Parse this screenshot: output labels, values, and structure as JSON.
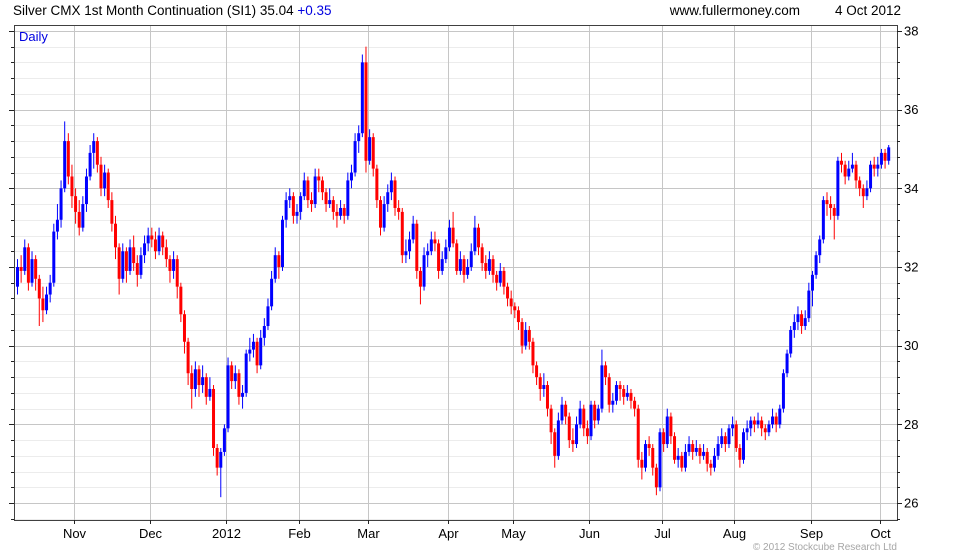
{
  "header": {
    "title": "Silver CMX 1st Month Continuation (SI1) 35.04",
    "change": "+0.35",
    "site": "www.fullermoney.com",
    "date": "4 Oct 2012"
  },
  "chart": {
    "timeframe": "Daily",
    "copyright": "© 2012 Stockcube Research Ltd"
  },
  "chart_data": {
    "type": "candlestick",
    "instrument": "Silver CMX 1st Month Continuation (SI1)",
    "timeframe": "Daily",
    "last_price": 35.04,
    "change": 0.35,
    "ylim": [
      25.57,
      38.15
    ],
    "y_major_ticks": [
      26,
      28,
      30,
      32,
      34,
      36,
      38
    ],
    "y_minor_step": 0.4,
    "grid": "major-and-minor-horizontal, vertical-at-month-starts",
    "legend_position": "none",
    "colors": {
      "up": "#0000ff",
      "down": "#ff0000",
      "grid_major": "#c6c6c6",
      "grid_minor": "#ececec",
      "border": "#404040",
      "tick": "#222222",
      "label": "#000000"
    },
    "months": [
      {
        "label": "Nov",
        "start": 16
      },
      {
        "label": "Dec",
        "start": 37
      },
      {
        "label": "2012",
        "start": 58
      },
      {
        "label": "Feb",
        "start": 78
      },
      {
        "label": "Mar",
        "start": 97
      },
      {
        "label": "Apr",
        "start": 119
      },
      {
        "label": "May",
        "start": 137
      },
      {
        "label": "Jun",
        "start": 158
      },
      {
        "label": "Jul",
        "start": 178
      },
      {
        "label": "Aug",
        "start": 198
      },
      {
        "label": "Sep",
        "start": 219
      },
      {
        "label": "Oct",
        "start": 238
      }
    ],
    "ohlc": [
      [
        31.5,
        32.2,
        31.3,
        32.0
      ],
      [
        32.0,
        32.3,
        31.6,
        31.9
      ],
      [
        31.9,
        32.7,
        31.8,
        32.5
      ],
      [
        32.5,
        32.6,
        31.4,
        31.6
      ],
      [
        31.6,
        32.4,
        31.5,
        32.2
      ],
      [
        32.2,
        32.3,
        31.4,
        31.7
      ],
      [
        31.7,
        31.8,
        30.5,
        31.2
      ],
      [
        31.2,
        31.5,
        30.6,
        30.9
      ],
      [
        30.9,
        31.5,
        30.8,
        31.3
      ],
      [
        31.3,
        31.8,
        31.1,
        31.6
      ],
      [
        31.6,
        33.1,
        31.5,
        32.9
      ],
      [
        32.9,
        33.6,
        32.7,
        33.2
      ],
      [
        33.2,
        34.2,
        33.0,
        34.0
      ],
      [
        34.0,
        35.7,
        33.9,
        35.2
      ],
      [
        35.2,
        35.4,
        34.1,
        34.3
      ],
      [
        34.3,
        34.6,
        33.5,
        33.8
      ],
      [
        33.8,
        34.0,
        33.1,
        33.4
      ],
      [
        33.4,
        33.7,
        32.8,
        33.0
      ],
      [
        33.0,
        33.8,
        32.9,
        33.6
      ],
      [
        33.6,
        34.5,
        33.4,
        34.3
      ],
      [
        34.3,
        35.1,
        34.2,
        34.9
      ],
      [
        34.9,
        35.4,
        34.5,
        35.2
      ],
      [
        35.2,
        35.3,
        34.4,
        34.6
      ],
      [
        34.6,
        34.8,
        33.8,
        34.0
      ],
      [
        34.0,
        34.6,
        33.8,
        34.4
      ],
      [
        34.4,
        34.5,
        33.5,
        33.7
      ],
      [
        33.7,
        33.9,
        32.9,
        33.1
      ],
      [
        33.1,
        33.3,
        32.2,
        32.5
      ],
      [
        32.5,
        32.6,
        31.3,
        31.7
      ],
      [
        31.7,
        32.6,
        31.6,
        32.4
      ],
      [
        32.4,
        32.5,
        31.6,
        31.9
      ],
      [
        31.9,
        32.7,
        31.8,
        32.5
      ],
      [
        32.5,
        32.8,
        31.9,
        32.1
      ],
      [
        32.1,
        32.3,
        31.5,
        31.8
      ],
      [
        31.8,
        32.5,
        31.7,
        32.3
      ],
      [
        32.3,
        32.8,
        32.1,
        32.6
      ],
      [
        32.6,
        33.0,
        32.4,
        32.8
      ],
      [
        32.8,
        33.0,
        32.5,
        32.7
      ],
      [
        32.7,
        32.9,
        32.2,
        32.4
      ],
      [
        32.4,
        33.0,
        32.3,
        32.8
      ],
      [
        32.8,
        32.9,
        32.3,
        32.5
      ],
      [
        32.5,
        32.7,
        32.0,
        32.2
      ],
      [
        32.2,
        32.3,
        31.6,
        31.9
      ],
      [
        31.9,
        32.4,
        31.7,
        32.2
      ],
      [
        32.2,
        32.3,
        31.2,
        31.5
      ],
      [
        31.5,
        31.6,
        30.6,
        30.8
      ],
      [
        30.8,
        30.9,
        29.8,
        30.1
      ],
      [
        30.1,
        30.2,
        29.0,
        29.3
      ],
      [
        29.3,
        29.5,
        28.4,
        28.9
      ],
      [
        28.9,
        29.6,
        28.7,
        29.4
      ],
      [
        29.4,
        29.5,
        28.7,
        29.0
      ],
      [
        29.0,
        29.5,
        28.8,
        29.2
      ],
      [
        29.2,
        29.3,
        28.5,
        28.7
      ],
      [
        28.7,
        29.2,
        28.6,
        28.9
      ],
      [
        28.9,
        29.0,
        27.2,
        27.4
      ],
      [
        27.4,
        27.5,
        26.7,
        26.9
      ],
      [
        26.9,
        27.4,
        26.15,
        27.3
      ],
      [
        27.3,
        28.0,
        27.2,
        27.9
      ],
      [
        27.9,
        29.7,
        27.8,
        29.5
      ],
      [
        29.5,
        29.6,
        28.9,
        29.1
      ],
      [
        29.1,
        29.5,
        28.9,
        29.3
      ],
      [
        29.3,
        29.4,
        28.5,
        28.7
      ],
      [
        28.7,
        29.0,
        28.4,
        28.8
      ],
      [
        28.8,
        29.9,
        28.7,
        29.8
      ],
      [
        29.8,
        30.2,
        29.6,
        29.9
      ],
      [
        29.9,
        30.3,
        29.7,
        30.1
      ],
      [
        30.1,
        30.2,
        29.3,
        29.5
      ],
      [
        29.5,
        30.4,
        29.4,
        30.2
      ],
      [
        30.2,
        30.7,
        30.0,
        30.5
      ],
      [
        30.5,
        31.2,
        30.4,
        31.0
      ],
      [
        31.0,
        31.9,
        30.9,
        31.7
      ],
      [
        31.7,
        32.5,
        31.6,
        32.3
      ],
      [
        32.3,
        32.4,
        31.7,
        32.0
      ],
      [
        32.0,
        33.3,
        31.9,
        33.2
      ],
      [
        33.2,
        33.9,
        33.0,
        33.7
      ],
      [
        33.7,
        34.0,
        33.5,
        33.8
      ],
      [
        33.8,
        33.9,
        33.1,
        33.3
      ],
      [
        33.3,
        33.6,
        33.1,
        33.4
      ],
      [
        33.4,
        33.9,
        33.2,
        33.8
      ],
      [
        33.8,
        34.4,
        33.7,
        34.2
      ],
      [
        34.2,
        34.3,
        33.5,
        33.7
      ],
      [
        33.7,
        33.9,
        33.4,
        33.6
      ],
      [
        33.6,
        34.5,
        33.5,
        34.3
      ],
      [
        34.3,
        34.5,
        33.9,
        34.2
      ],
      [
        34.2,
        34.3,
        33.7,
        33.9
      ],
      [
        33.9,
        34.0,
        33.4,
        33.6
      ],
      [
        33.6,
        34.0,
        33.5,
        33.7
      ],
      [
        33.7,
        33.8,
        33.2,
        33.4
      ],
      [
        33.4,
        33.6,
        33.0,
        33.3
      ],
      [
        33.3,
        33.7,
        33.2,
        33.5
      ],
      [
        33.5,
        33.6,
        33.1,
        33.3
      ],
      [
        33.3,
        34.4,
        33.2,
        34.2
      ],
      [
        34.2,
        34.6,
        34.0,
        34.4
      ],
      [
        34.4,
        35.4,
        34.3,
        35.2
      ],
      [
        35.2,
        35.6,
        34.9,
        35.4
      ],
      [
        35.4,
        37.4,
        35.3,
        37.2
      ],
      [
        37.2,
        37.6,
        34.4,
        34.7
      ],
      [
        34.7,
        35.5,
        34.6,
        35.3
      ],
      [
        35.3,
        35.4,
        34.3,
        34.5
      ],
      [
        34.5,
        34.6,
        33.5,
        33.7
      ],
      [
        33.7,
        33.8,
        32.8,
        33.0
      ],
      [
        33.0,
        33.8,
        32.9,
        33.6
      ],
      [
        33.6,
        34.1,
        33.4,
        33.9
      ],
      [
        33.9,
        34.4,
        33.7,
        34.2
      ],
      [
        34.2,
        34.3,
        33.3,
        33.5
      ],
      [
        33.5,
        33.7,
        33.2,
        33.4
      ],
      [
        33.4,
        33.5,
        32.1,
        32.3
      ],
      [
        32.3,
        32.7,
        32.1,
        32.4
      ],
      [
        32.4,
        32.9,
        32.2,
        32.7
      ],
      [
        32.7,
        33.3,
        32.6,
        33.1
      ],
      [
        33.1,
        33.2,
        31.7,
        31.9
      ],
      [
        31.9,
        32.0,
        31.05,
        31.5
      ],
      [
        31.5,
        32.5,
        31.4,
        32.3
      ],
      [
        32.3,
        32.6,
        32.0,
        32.4
      ],
      [
        32.4,
        32.9,
        32.3,
        32.7
      ],
      [
        32.7,
        32.9,
        32.4,
        32.6
      ],
      [
        32.6,
        32.7,
        31.7,
        31.9
      ],
      [
        31.9,
        32.4,
        31.8,
        32.2
      ],
      [
        32.2,
        32.7,
        32.1,
        32.5
      ],
      [
        32.5,
        33.2,
        32.4,
        33.0
      ],
      [
        33.0,
        33.4,
        32.5,
        32.6
      ],
      [
        32.6,
        32.7,
        31.8,
        31.9
      ],
      [
        31.9,
        32.4,
        31.8,
        32.2
      ],
      [
        32.2,
        32.3,
        31.6,
        31.8
      ],
      [
        31.8,
        32.2,
        31.7,
        32.0
      ],
      [
        32.0,
        32.6,
        31.9,
        32.4
      ],
      [
        32.4,
        33.3,
        32.3,
        33.0
      ],
      [
        33.0,
        33.1,
        32.3,
        32.5
      ],
      [
        32.5,
        32.6,
        31.9,
        32.1
      ],
      [
        32.1,
        32.3,
        31.7,
        31.9
      ],
      [
        31.9,
        32.4,
        31.8,
        32.2
      ],
      [
        32.2,
        32.3,
        31.6,
        31.8
      ],
      [
        31.8,
        31.9,
        31.4,
        31.6
      ],
      [
        31.6,
        32.1,
        31.5,
        31.9
      ],
      [
        31.9,
        32.0,
        31.3,
        31.5
      ],
      [
        31.5,
        31.6,
        31.0,
        31.2
      ],
      [
        31.2,
        31.4,
        30.8,
        31.0
      ],
      [
        31.0,
        31.1,
        30.7,
        30.9
      ],
      [
        30.9,
        31.0,
        30.4,
        30.6
      ],
      [
        30.6,
        30.7,
        29.8,
        30.0
      ],
      [
        30.0,
        30.6,
        29.9,
        30.4
      ],
      [
        30.4,
        30.5,
        29.9,
        30.1
      ],
      [
        30.1,
        30.2,
        29.3,
        29.5
      ],
      [
        29.5,
        29.6,
        29.0,
        29.2
      ],
      [
        29.2,
        29.3,
        28.6,
        28.9
      ],
      [
        28.9,
        29.3,
        28.7,
        29.0
      ],
      [
        29.0,
        29.1,
        28.2,
        28.4
      ],
      [
        28.4,
        28.5,
        27.5,
        27.8
      ],
      [
        27.8,
        27.9,
        26.9,
        27.2
      ],
      [
        27.2,
        28.3,
        27.1,
        28.1
      ],
      [
        28.1,
        28.7,
        28.0,
        28.5
      ],
      [
        28.5,
        28.6,
        28.0,
        28.2
      ],
      [
        28.2,
        28.3,
        27.4,
        27.6
      ],
      [
        27.6,
        27.9,
        27.3,
        27.5
      ],
      [
        27.5,
        28.2,
        27.4,
        28.0
      ],
      [
        28.0,
        28.6,
        27.9,
        28.4
      ],
      [
        28.4,
        28.5,
        27.7,
        27.9
      ],
      [
        27.9,
        28.1,
        27.5,
        27.7
      ],
      [
        27.7,
        28.6,
        27.6,
        28.5
      ],
      [
        28.5,
        28.6,
        27.9,
        28.1
      ],
      [
        28.1,
        28.5,
        28.0,
        28.4
      ],
      [
        28.4,
        29.9,
        28.3,
        29.5
      ],
      [
        29.5,
        29.6,
        29.0,
        29.2
      ],
      [
        29.2,
        29.3,
        28.3,
        28.5
      ],
      [
        28.5,
        28.8,
        28.3,
        28.6
      ],
      [
        28.6,
        29.1,
        28.5,
        29.0
      ],
      [
        29.0,
        29.1,
        28.6,
        28.9
      ],
      [
        28.9,
        29.0,
        28.5,
        28.7
      ],
      [
        28.7,
        29.0,
        28.6,
        28.8
      ],
      [
        28.8,
        28.9,
        28.4,
        28.6
      ],
      [
        28.6,
        28.7,
        28.2,
        28.4
      ],
      [
        28.4,
        28.5,
        26.9,
        27.1
      ],
      [
        27.1,
        27.3,
        26.6,
        26.9
      ],
      [
        26.9,
        27.6,
        26.8,
        27.5
      ],
      [
        27.5,
        27.7,
        27.2,
        27.4
      ],
      [
        27.4,
        27.5,
        26.7,
        26.9
      ],
      [
        26.9,
        27.0,
        26.2,
        26.4
      ],
      [
        26.4,
        27.9,
        26.3,
        27.8
      ],
      [
        27.8,
        27.9,
        27.3,
        27.5
      ],
      [
        27.5,
        28.4,
        27.4,
        28.2
      ],
      [
        28.2,
        28.3,
        27.5,
        27.7
      ],
      [
        27.7,
        27.8,
        27.0,
        27.1
      ],
      [
        27.1,
        27.4,
        26.9,
        27.2
      ],
      [
        27.2,
        27.3,
        26.8,
        26.9
      ],
      [
        26.9,
        27.5,
        26.8,
        27.3
      ],
      [
        27.3,
        27.7,
        27.2,
        27.5
      ],
      [
        27.5,
        27.6,
        27.1,
        27.3
      ],
      [
        27.3,
        27.6,
        27.2,
        27.4
      ],
      [
        27.4,
        27.5,
        27.0,
        27.2
      ],
      [
        27.2,
        27.5,
        27.1,
        27.3
      ],
      [
        27.3,
        27.4,
        26.8,
        27.0
      ],
      [
        27.0,
        27.1,
        26.7,
        26.9
      ],
      [
        26.9,
        27.4,
        26.8,
        27.2
      ],
      [
        27.2,
        27.7,
        27.1,
        27.5
      ],
      [
        27.5,
        27.9,
        27.4,
        27.7
      ],
      [
        27.7,
        27.8,
        27.3,
        27.5
      ],
      [
        27.5,
        28.0,
        27.4,
        27.9
      ],
      [
        27.9,
        28.2,
        27.7,
        28.0
      ],
      [
        28.0,
        28.1,
        27.3,
        27.4
      ],
      [
        27.4,
        27.5,
        26.9,
        27.1
      ],
      [
        27.1,
        27.9,
        27.0,
        27.8
      ],
      [
        27.8,
        28.1,
        27.6,
        27.9
      ],
      [
        27.9,
        28.2,
        27.7,
        28.1
      ],
      [
        28.1,
        28.2,
        27.8,
        28.0
      ],
      [
        28.0,
        28.3,
        27.9,
        28.1
      ],
      [
        28.1,
        28.2,
        27.7,
        27.9
      ],
      [
        27.9,
        28.0,
        27.6,
        27.8
      ],
      [
        27.8,
        28.1,
        27.7,
        28.0
      ],
      [
        28.0,
        28.4,
        27.9,
        28.2
      ],
      [
        28.2,
        28.3,
        27.8,
        28.0
      ],
      [
        28.0,
        28.5,
        27.9,
        28.4
      ],
      [
        28.4,
        29.4,
        28.3,
        29.3
      ],
      [
        29.3,
        29.9,
        29.2,
        29.8
      ],
      [
        29.8,
        30.5,
        29.7,
        30.4
      ],
      [
        30.4,
        30.8,
        30.2,
        30.6
      ],
      [
        30.6,
        31.0,
        30.4,
        30.8
      ],
      [
        30.8,
        30.9,
        30.3,
        30.5
      ],
      [
        30.5,
        30.9,
        30.4,
        30.7
      ],
      [
        30.7,
        31.6,
        30.6,
        31.4
      ],
      [
        31.4,
        31.9,
        31.0,
        31.8
      ],
      [
        31.8,
        32.4,
        31.7,
        32.3
      ],
      [
        32.3,
        32.8,
        32.1,
        32.7
      ],
      [
        32.7,
        33.8,
        32.6,
        33.7
      ],
      [
        33.7,
        33.9,
        33.3,
        33.6
      ],
      [
        33.6,
        33.8,
        33.2,
        33.5
      ],
      [
        33.5,
        33.6,
        32.7,
        33.3
      ],
      [
        33.3,
        34.8,
        33.2,
        34.7
      ],
      [
        34.7,
        34.9,
        34.4,
        34.6
      ],
      [
        34.6,
        34.7,
        34.1,
        34.3
      ],
      [
        34.3,
        34.7,
        34.2,
        34.5
      ],
      [
        34.5,
        34.9,
        34.4,
        34.6
      ],
      [
        34.6,
        34.7,
        34.0,
        34.2
      ],
      [
        34.2,
        34.3,
        33.8,
        34.0
      ],
      [
        34.0,
        34.1,
        33.5,
        33.8
      ],
      [
        33.8,
        34.2,
        33.7,
        34.0
      ],
      [
        34.0,
        34.7,
        33.9,
        34.6
      ],
      [
        34.6,
        34.8,
        34.3,
        34.5
      ],
      [
        34.5,
        34.8,
        34.3,
        34.6
      ],
      [
        34.6,
        35.0,
        34.5,
        34.9
      ],
      [
        34.9,
        35.0,
        34.5,
        34.7
      ],
      [
        34.7,
        35.1,
        34.6,
        35.04
      ]
    ]
  }
}
